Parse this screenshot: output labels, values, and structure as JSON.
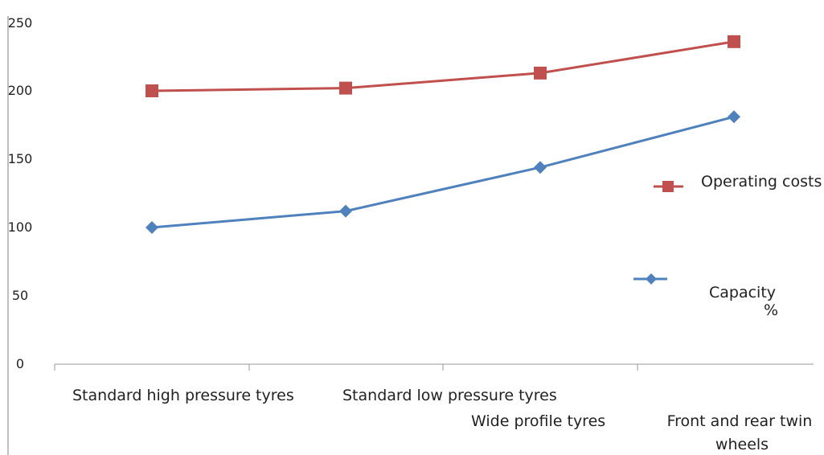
{
  "chart_data": {
    "type": "line",
    "categories": [
      "Standard high pressure tyres",
      "Standard low pressure tyres",
      "Wide profile tyres",
      "Front and rear twin wheels"
    ],
    "series": [
      {
        "name": "Operating costs",
        "values": [
          200,
          202,
          213,
          236
        ],
        "color": "#c0504d",
        "marker": "square"
      },
      {
        "name": "Capacity %",
        "values": [
          100,
          112,
          144,
          181
        ],
        "color": "#4f81bd",
        "marker": "diamond"
      }
    ],
    "yticks": [
      "0",
      "50",
      "100",
      "150",
      "200",
      "250"
    ],
    "ylim": [
      0,
      250
    ],
    "grid": false,
    "legend_position": "right",
    "legend": {
      "operating_costs": "Operating costs",
      "capacity": "Capacity",
      "capacity_unit": "%"
    }
  }
}
